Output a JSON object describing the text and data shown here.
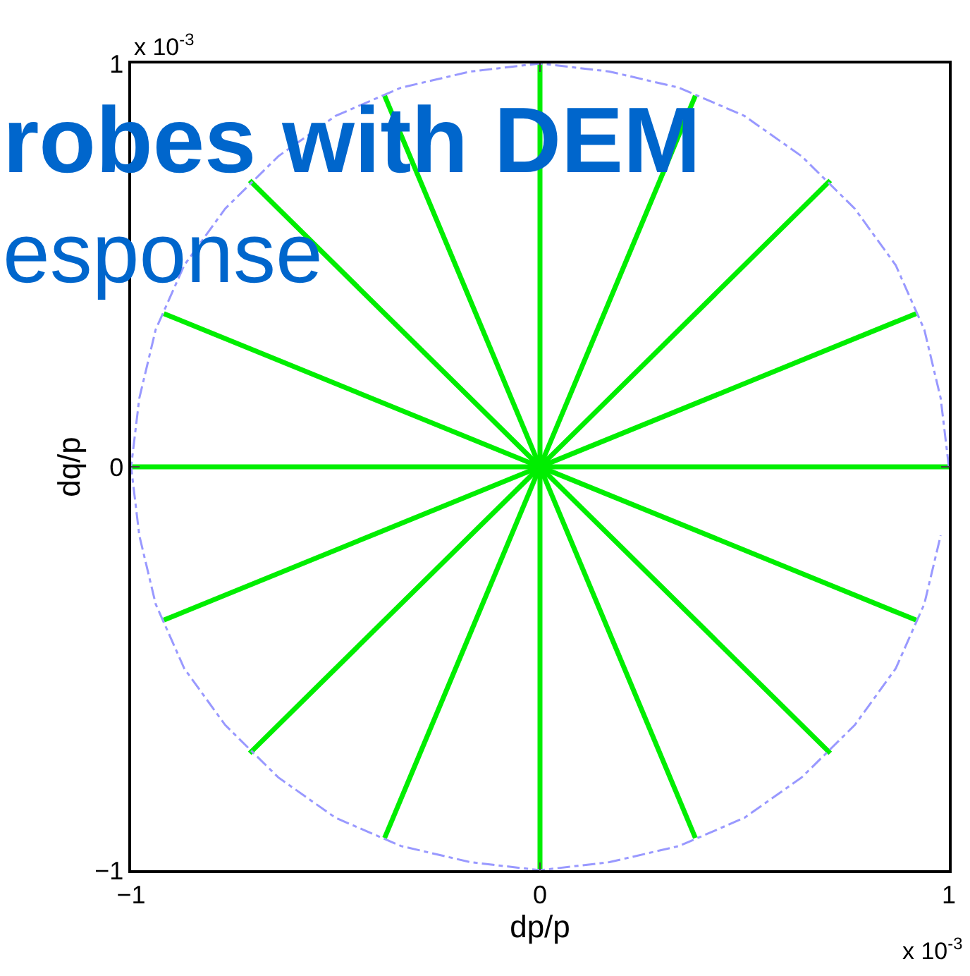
{
  "chart_data": {
    "type": "line",
    "title": "robes with DEM",
    "subtitle": "esponse",
    "xlabel": "dp/p",
    "ylabel": "dq/p",
    "annotations": [
      "x 10$^{-3}$",
      "x 10$^{-3}$"
    ],
    "xlim": [
      -1,
      1
    ],
    "ylim": [
      -1,
      1
    ],
    "xticks": [
      {
        "value": -1,
        "label": "−1"
      },
      0,
      1
    ],
    "yticks": [
      {
        "value": -1,
        "label": "−1"
      },
      0,
      1
    ],
    "marker": "none",
    "series": [
      {
        "color": "#00ee00",
        "x": [
          1,
          -1
        ],
        "values": [
          0,
          0
        ]
      },
      {
        "color": "#00ee00",
        "x": [
          0.92,
          -0.92
        ],
        "values": [
          0.38,
          -0.38
        ]
      },
      {
        "color": "#00ee00",
        "x": [
          0.71,
          -0.71
        ],
        "values": [
          0.71,
          -0.71
        ]
      },
      {
        "color": "#00ee00",
        "x": [
          0.38,
          -0.38
        ],
        "values": [
          0.92,
          -0.92
        ]
      },
      {
        "color": "#00ee00",
        "x": [
          0,
          0
        ],
        "values": [
          1,
          -1
        ]
      },
      {
        "color": "#00ee00",
        "x": [
          -0.38,
          0.38
        ],
        "values": [
          0.92,
          -0.92
        ]
      },
      {
        "color": "#00ee00",
        "x": [
          -0.71,
          0.71
        ],
        "values": [
          0.71,
          -0.71
        ]
      },
      {
        "color": "#00ee00",
        "x": [
          -0.92,
          0.92
        ],
        "values": [
          0.38,
          -0.38
        ]
      },
      {
        "color": "#9999ff",
        "line_style": "dashed",
        "x": [
          1,
          0.98,
          0.94,
          0.87,
          0.77,
          0.64,
          0.5,
          0.34,
          0.17,
          0,
          -0.17,
          -0.34,
          -0.5,
          -0.64,
          -0.77,
          -0.87,
          -0.94,
          -0.98,
          -1,
          -0.98,
          -0.94,
          -0.87,
          -0.77,
          -0.64,
          -0.5,
          -0.34,
          -0.17,
          0,
          0.17,
          0.34,
          0.5,
          0.64,
          0.77,
          0.87,
          0.94,
          0.98
        ],
        "values": [
          0,
          0.17,
          0.34,
          0.5,
          0.64,
          0.77,
          0.87,
          0.94,
          0.98,
          1,
          0.98,
          0.94,
          0.87,
          0.77,
          0.64,
          0.5,
          0.34,
          0.17,
          0,
          -0.17,
          -0.34,
          -0.5,
          -0.64,
          -0.77,
          -0.87,
          -0.94,
          -0.98,
          -1,
          -0.98,
          -0.94,
          -0.87,
          -0.77,
          -0.64,
          -0.5,
          -0.34,
          -0.17
        ]
      }
    ]
  }
}
